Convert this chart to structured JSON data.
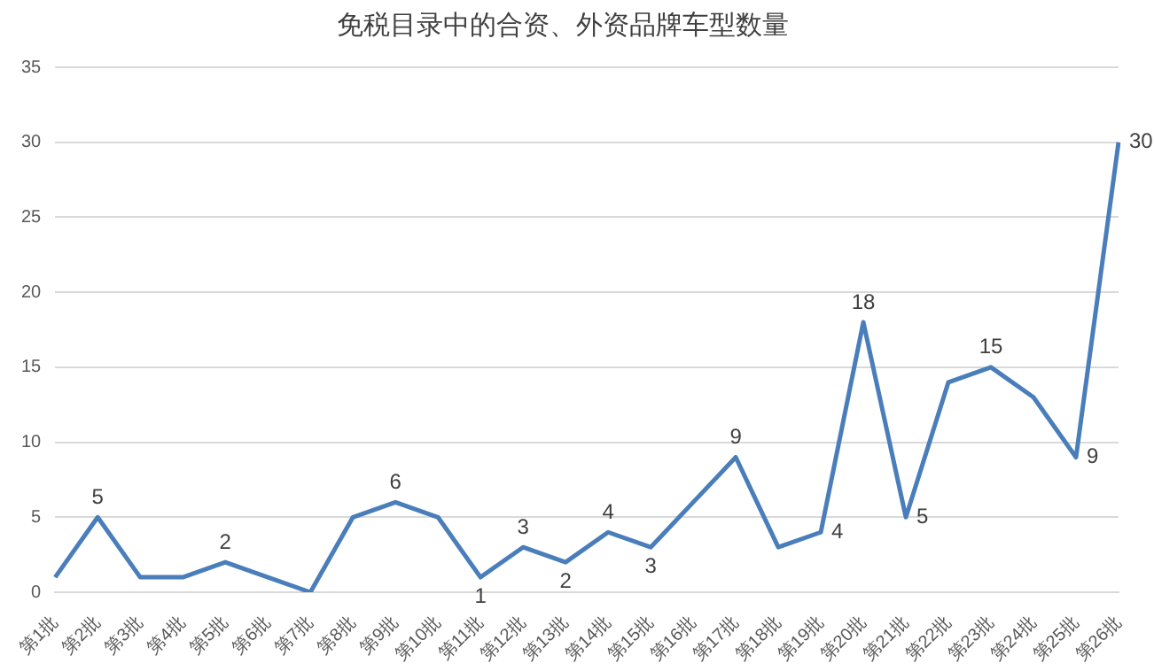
{
  "chart_data": {
    "type": "line",
    "title": "免税目录中的合资、外资品牌车型数量",
    "categories": [
      "第1批",
      "第2批",
      "第3批",
      "第4批",
      "第5批",
      "第6批",
      "第7批",
      "第8批",
      "第9批",
      "第10批",
      "第11批",
      "第12批",
      "第13批",
      "第14批",
      "第15批",
      "第16批",
      "第17批",
      "第18批",
      "第19批",
      "第20批",
      "第21批",
      "第22批",
      "第23批",
      "第24批",
      "第25批",
      "第26批"
    ],
    "series": [
      {
        "color": "#4a7ebb",
        "values": [
          1,
          5,
          1,
          1,
          2,
          1,
          0,
          5,
          6,
          5,
          1,
          3,
          2,
          4,
          3,
          6,
          9,
          3,
          4,
          18,
          5,
          14,
          15,
          13,
          9,
          30
        ],
        "value_labels": [
          null,
          "5",
          null,
          null,
          "2",
          null,
          null,
          null,
          "6",
          null,
          "1",
          "3",
          "2",
          "4",
          "3",
          null,
          "9",
          null,
          "4",
          "18",
          "5",
          null,
          "15",
          null,
          "9",
          "30"
        ]
      }
    ],
    "ylim": [
      0,
      35
    ],
    "yticks": [
      0,
      5,
      10,
      15,
      20,
      25,
      30,
      35
    ],
    "grid": "y",
    "legend": false,
    "marker": "none",
    "line_style": "solid"
  }
}
